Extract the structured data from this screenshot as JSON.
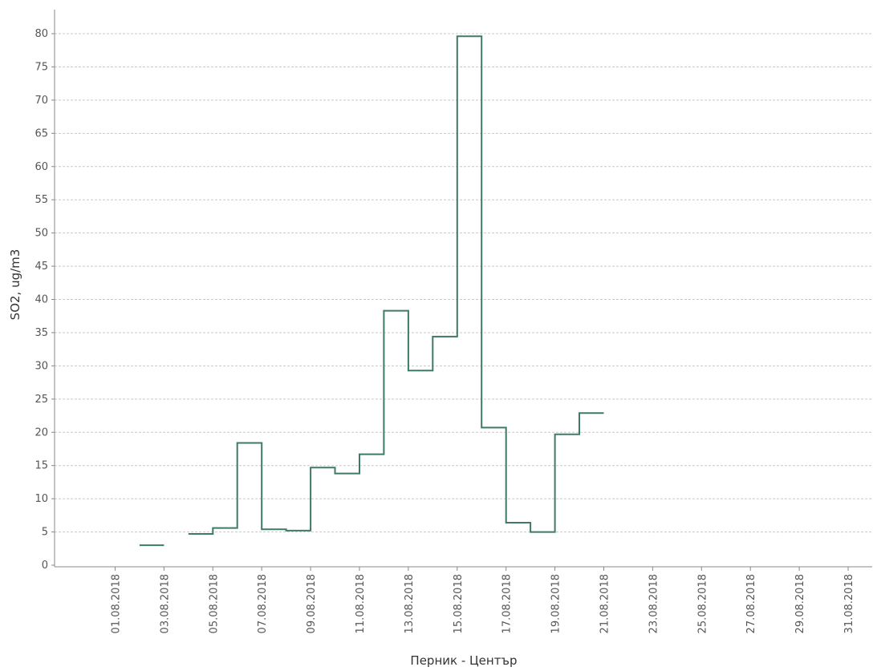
{
  "chart_data": {
    "type": "line",
    "step": true,
    "xlabel": "Перник - Център",
    "ylabel": "SO2, ug/m3",
    "ylim": [
      0,
      80
    ],
    "yticks": [
      0,
      5,
      10,
      15,
      20,
      25,
      30,
      35,
      40,
      45,
      50,
      55,
      60,
      65,
      70,
      75,
      80
    ],
    "xlim": [
      "2018-07-31",
      "2018-08-31"
    ],
    "xtick_labels": [
      "01.08.2018",
      "03.08.2018",
      "05.08.2018",
      "07.08.2018",
      "09.08.2018",
      "11.08.2018",
      "13.08.2018",
      "15.08.2018",
      "17.08.2018",
      "19.08.2018",
      "21.08.2018",
      "23.08.2018",
      "25.08.2018",
      "27.08.2018",
      "29.08.2018",
      "31.08.2018"
    ],
    "grid": true,
    "line_color": "#3f7a63",
    "series": [
      {
        "dates": [
          "2018-08-02",
          "2018-08-03",
          "2018-08-04",
          "2018-08-05",
          "2018-08-06",
          "2018-08-07",
          "2018-08-08",
          "2018-08-09",
          "2018-08-10",
          "2018-08-11",
          "2018-08-12",
          "2018-08-13",
          "2018-08-14",
          "2018-08-15",
          "2018-08-16",
          "2018-08-17",
          "2018-08-18",
          "2018-08-19",
          "2018-08-20"
        ],
        "values": [
          3.0,
          null,
          4.7,
          5.6,
          18.4,
          5.4,
          5.2,
          14.7,
          13.8,
          16.7,
          38.3,
          29.3,
          34.4,
          79.6,
          20.7,
          6.4,
          5.0,
          19.7,
          22.9
        ]
      }
    ]
  }
}
